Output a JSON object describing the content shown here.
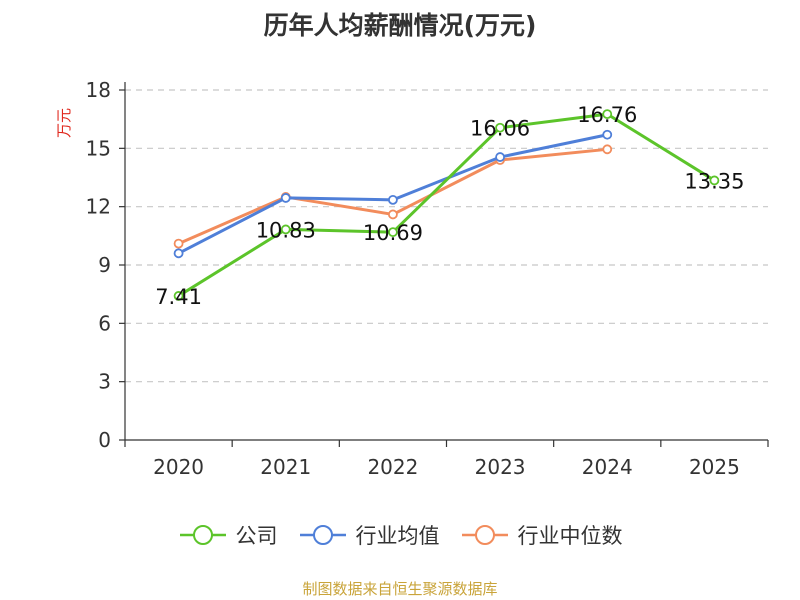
{
  "chart_data": {
    "type": "line",
    "title": "历年人均薪酬情况(万元)",
    "ylabel": "万元",
    "xlabel": "",
    "categories": [
      "2020",
      "2021",
      "2022",
      "2023",
      "2024",
      "2025"
    ],
    "ylim": [
      0,
      18
    ],
    "yticks": [
      0,
      3,
      6,
      9,
      12,
      15,
      18
    ],
    "grid": true,
    "legend": "bottom",
    "series": [
      {
        "name": "公司",
        "color": "#5cc42a",
        "values": [
          7.41,
          10.83,
          10.69,
          16.06,
          16.76,
          13.35
        ],
        "labels": [
          "7.41",
          "10.83",
          "10.69",
          "16.06",
          "16.76",
          "13.35"
        ]
      },
      {
        "name": "行业均值",
        "color": "#4f7fd8",
        "values": [
          9.6,
          12.45,
          12.35,
          14.55,
          15.7,
          null
        ]
      },
      {
        "name": "行业中位数",
        "color": "#f28c5c",
        "values": [
          10.1,
          12.5,
          11.6,
          14.4,
          14.95,
          null
        ]
      }
    ]
  },
  "footer": "制图数据来自恒生聚源数据库"
}
